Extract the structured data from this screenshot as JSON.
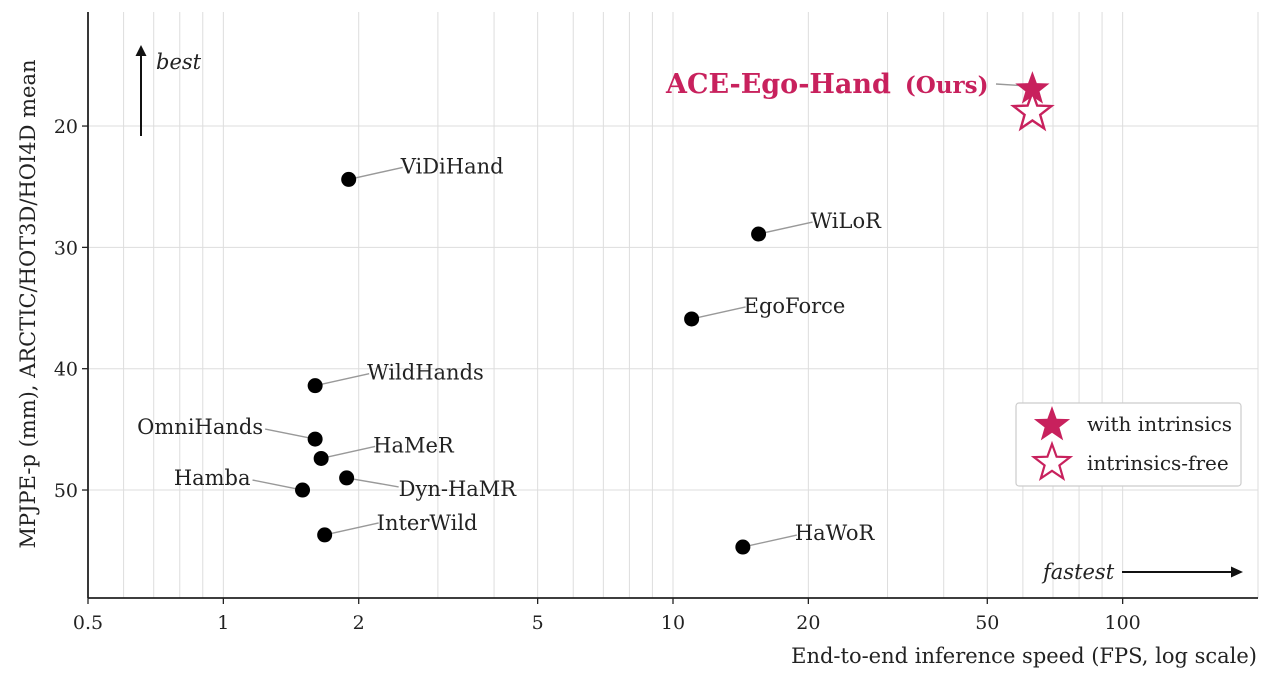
{
  "colors": {
    "accent": "#c8215d",
    "marker": "#000000",
    "grid": "#dddddd",
    "leader": "#999999"
  },
  "chart_data": {
    "type": "scatter",
    "xlabel": "End-to-end inference speed (FPS, log scale)",
    "ylabel": "MPJPE-p (mm), ARCTIC/HOT3D/HOI4D mean",
    "x_scale": "log",
    "xlim": [
      0.5,
      200
    ],
    "ylim": [
      58.9,
      10.6
    ],
    "y_inverted": true,
    "grid": true,
    "x_ticks": [
      0.5,
      1,
      2,
      5,
      10,
      20,
      50,
      100
    ],
    "x_tick_labels": [
      "0.5",
      "1",
      "2",
      "5",
      "10",
      "20",
      "50",
      "100"
    ],
    "y_ticks": [
      20,
      30,
      40,
      50
    ],
    "y_tick_labels": [
      "20",
      "30",
      "40",
      "50"
    ],
    "annotations": {
      "best": "best",
      "fastest": "fastest"
    },
    "legend": {
      "position": "right",
      "entries": [
        {
          "label": "with intrinsics",
          "marker": "filled-star"
        },
        {
          "label": "intrinsics-free",
          "marker": "hollow-star"
        }
      ]
    },
    "ours": {
      "name": "ACE-Ego-Hand",
      "suffix": "(Ours)",
      "with_intrinsics": {
        "fps": 63,
        "mpjpe": 17.2
      },
      "intrinsics_free": {
        "fps": 63,
        "mpjpe": 18.7
      }
    },
    "points": [
      {
        "label": "ViDiHand",
        "fps": 1.9,
        "mpjpe": 24.4
      },
      {
        "label": "WiLoR",
        "fps": 15.5,
        "mpjpe": 28.9
      },
      {
        "label": "EgoForce",
        "fps": 11.0,
        "mpjpe": 35.9
      },
      {
        "label": "WildHands",
        "fps": 1.6,
        "mpjpe": 41.4
      },
      {
        "label": "OmniHands",
        "fps": 1.6,
        "mpjpe": 45.8
      },
      {
        "label": "HaMeR",
        "fps": 1.65,
        "mpjpe": 47.4
      },
      {
        "label": "Hamba",
        "fps": 1.5,
        "mpjpe": 50.0
      },
      {
        "label": "Dyn-HaMR",
        "fps": 1.88,
        "mpjpe": 49.0
      },
      {
        "label": "InterWild",
        "fps": 1.68,
        "mpjpe": 53.7
      },
      {
        "label": "HaWoR",
        "fps": 14.3,
        "mpjpe": 54.7
      }
    ]
  }
}
